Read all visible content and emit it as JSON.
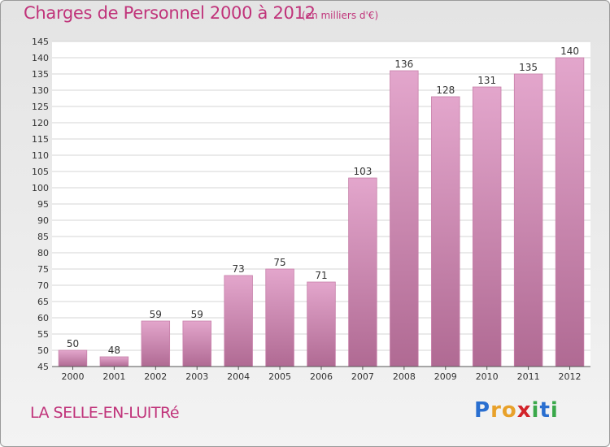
{
  "title": "Charges de Personnel 2000 à 2012",
  "subtitle": "(en milliers d'€)",
  "commune": "LA SELLE-EN-LUITRé",
  "logo": {
    "text": "Proxiti",
    "letters": [
      {
        "char": "P",
        "color": "#2a6fd0"
      },
      {
        "char": "r",
        "color": "#e8a12a"
      },
      {
        "char": "o",
        "color": "#e8a12a"
      },
      {
        "char": "x",
        "color": "#d2232a"
      },
      {
        "char": "i",
        "color": "#3aa84a"
      },
      {
        "char": "t",
        "color": "#2a6fd0"
      },
      {
        "char": "i",
        "color": "#3aa84a"
      }
    ]
  },
  "chart_data": {
    "type": "bar",
    "categories": [
      "2000",
      "2001",
      "2002",
      "2003",
      "2004",
      "2005",
      "2006",
      "2007",
      "2008",
      "2009",
      "2010",
      "2011",
      "2012"
    ],
    "values": [
      50,
      48,
      59,
      59,
      73,
      75,
      71,
      103,
      136,
      128,
      131,
      135,
      140
    ],
    "ylim": [
      45,
      145
    ],
    "yticks": [
      45,
      50,
      55,
      60,
      65,
      70,
      75,
      80,
      85,
      90,
      95,
      100,
      105,
      110,
      115,
      120,
      125,
      130,
      135,
      140,
      145
    ],
    "grid": true,
    "bar_color": "#d98cb8",
    "bar_color_dark": "#b06a93"
  }
}
